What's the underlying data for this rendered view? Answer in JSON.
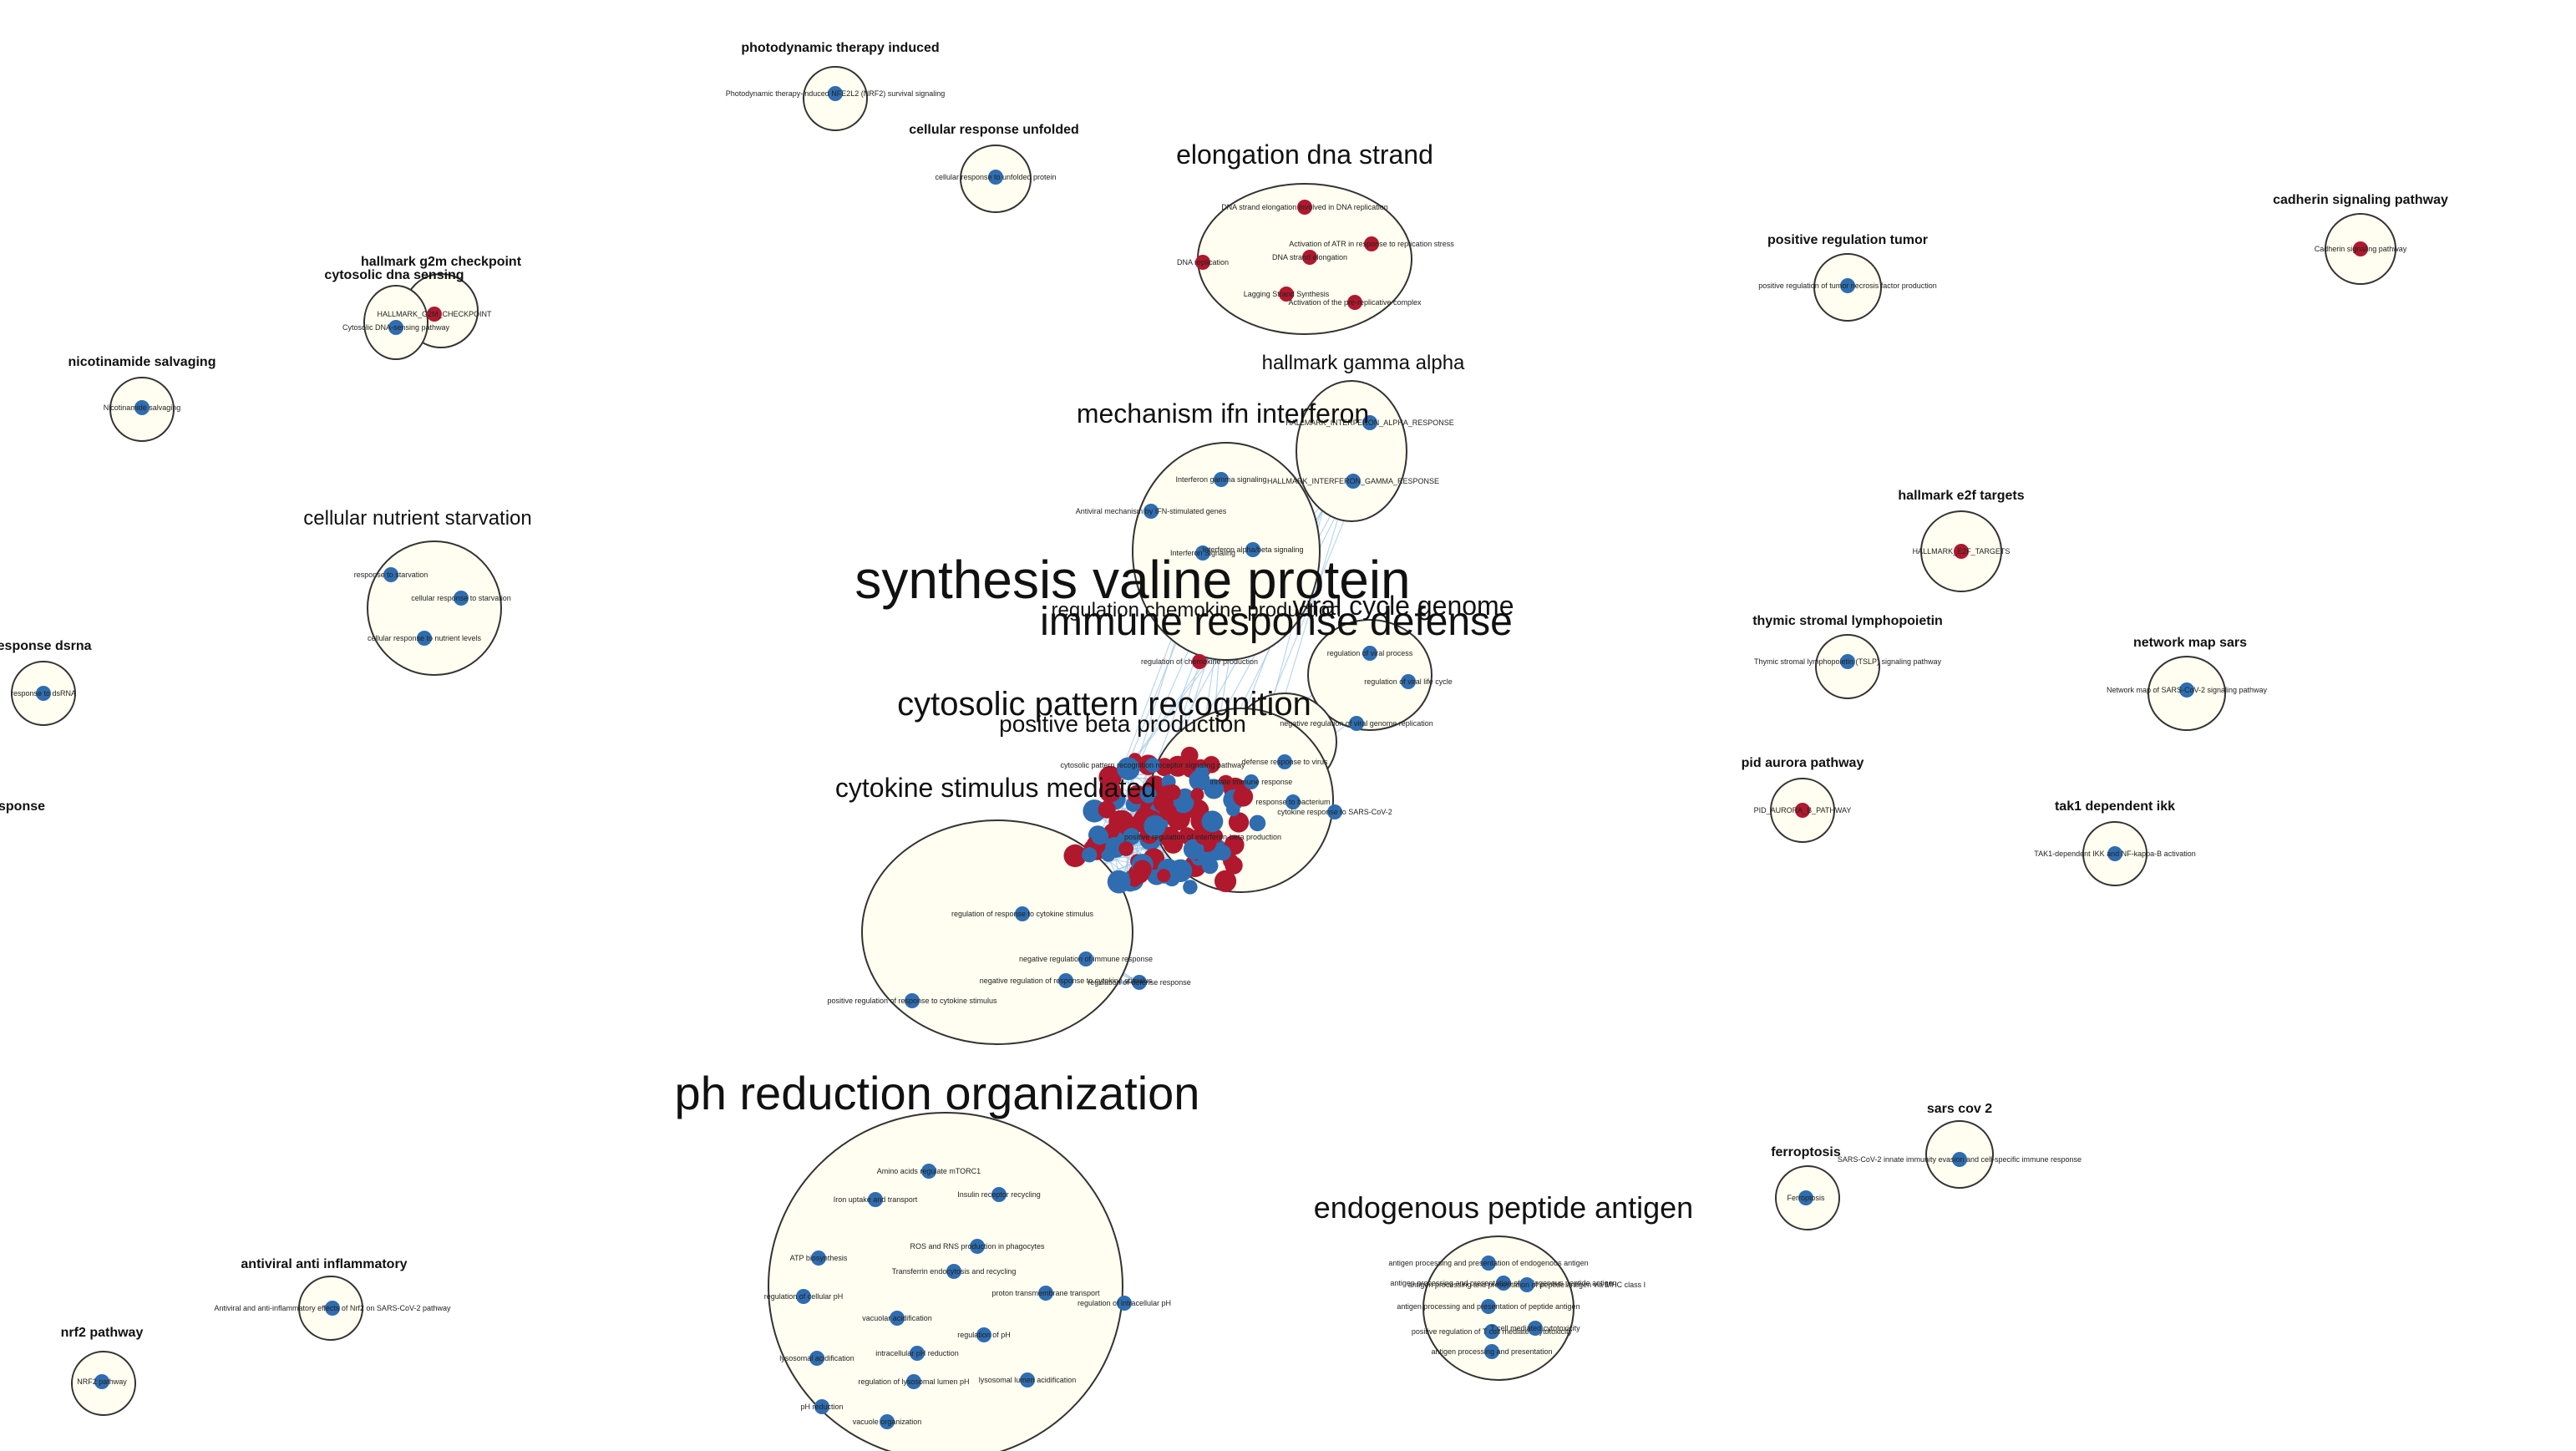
{
  "colors": {
    "background": "#ffffff",
    "cluster_fill": "#fffef0",
    "cluster_stroke": "#333333",
    "node_blue": "#2f6db0",
    "node_red": "#b0182e",
    "edge": "#9ec6e6"
  },
  "clusters": [
    {
      "title": "photodynamic therapy induced",
      "nodes": [
        {
          "label": "Photodynamic therapy-induced NFE2L2 (NRF2) survival signaling",
          "color": "blue"
        }
      ]
    },
    {
      "title": "cellular response unfolded",
      "nodes": [
        {
          "label": "cellular response to unfolded protein",
          "color": "blue"
        }
      ]
    },
    {
      "title": "elongation dna strand",
      "nodes": [
        {
          "label": "DNA strand elongation involved in DNA replication",
          "color": "red"
        },
        {
          "label": "Activation of ATR in response to replication stress",
          "color": "red"
        },
        {
          "label": "DNA replication",
          "color": "red"
        },
        {
          "label": "DNA strand elongation",
          "color": "red"
        },
        {
          "label": "Lagging Strand Synthesis",
          "color": "red"
        },
        {
          "label": "Activation of the pre-replicative complex",
          "color": "red"
        }
      ]
    },
    {
      "title": "hallmark g2m checkpoint",
      "nodes": [
        {
          "label": "HALLMARK_G2M_CHECKPOINT",
          "color": "red"
        }
      ]
    },
    {
      "title": "cytosolic dna sensing",
      "nodes": [
        {
          "label": "Cytosolic DNA-sensing pathway",
          "color": "blue"
        }
      ]
    },
    {
      "title": "nicotinamide salvaging",
      "nodes": [
        {
          "label": "Nicotinamide salvaging",
          "color": "blue"
        }
      ]
    },
    {
      "title": "hallmark gamma alpha",
      "nodes": [
        {
          "label": "HALLMARK_INTERFERON_ALPHA_RESPONSE",
          "color": "blue"
        },
        {
          "label": "HALLMARK_INTERFERON_GAMMA_RESPONSE",
          "color": "blue"
        }
      ]
    },
    {
      "title": "mechanism ifn interferon",
      "nodes": [
        {
          "label": "Interferon gamma signaling",
          "color": "blue"
        },
        {
          "label": "Antiviral mechanism by IFN-stimulated genes",
          "color": "blue"
        },
        {
          "label": "Interferon Signaling",
          "color": "blue"
        },
        {
          "label": "Interferon alpha/beta signaling",
          "color": "blue"
        }
      ]
    },
    {
      "title": "cellular nutrient starvation",
      "nodes": [
        {
          "label": "response to starvation",
          "color": "blue"
        },
        {
          "label": "cellular response to starvation",
          "color": "blue"
        },
        {
          "label": "cellular response to nutrient levels",
          "color": "blue"
        }
      ]
    },
    {
      "title": "response dsrna",
      "nodes": [
        {
          "label": "response to dsRNA",
          "color": "blue"
        }
      ]
    },
    {
      "title": "sponse",
      "nodes": []
    },
    {
      "title": "synthesis valine protein",
      "nodes": []
    },
    {
      "title": "viral cycle genome",
      "nodes": [
        {
          "label": "regulation of viral process",
          "color": "blue"
        },
        {
          "label": "regulation of viral life cycle",
          "color": "blue"
        },
        {
          "label": "negative regulation of viral genome replication",
          "color": "blue"
        }
      ]
    },
    {
      "title": "regulation chemokine production",
      "nodes": [
        {
          "label": "regulation of chemokine production",
          "color": "red"
        }
      ]
    },
    {
      "title": "immune response defense",
      "nodes": [
        {
          "label": "defense response to virus",
          "color": "blue"
        },
        {
          "label": "innate immune response",
          "color": "blue"
        },
        {
          "label": "response to bacterium",
          "color": "blue"
        },
        {
          "label": "cytokine response to SARS-CoV-2",
          "color": "blue"
        }
      ]
    },
    {
      "title": "cytosolic pattern recognition",
      "nodes": [
        {
          "label": "cytosolic pattern recognition receptor signaling pathway",
          "color": "blue"
        }
      ]
    },
    {
      "title": "positive beta production",
      "nodes": [
        {
          "label": "positive regulation of interferon-beta production",
          "color": "red"
        }
      ]
    },
    {
      "title": "cytokine stimulus mediated",
      "nodes": [
        {
          "label": "regulation of response to cytokine stimulus",
          "color": "blue"
        },
        {
          "label": "negative regulation of immune response",
          "color": "blue"
        },
        {
          "label": "regulation of defense response",
          "color": "blue"
        },
        {
          "label": "negative regulation of response to cytokine stimulus",
          "color": "blue"
        },
        {
          "label": "positive regulation of response to cytokine stimulus",
          "color": "blue"
        }
      ]
    },
    {
      "title": "ph reduction organization",
      "nodes": [
        {
          "label": "Amino acids regulate mTORC1",
          "color": "blue"
        },
        {
          "label": "Iron uptake and transport",
          "color": "blue"
        },
        {
          "label": "Insulin receptor recycling",
          "color": "blue"
        },
        {
          "label": "ROS and RNS production in phagocytes",
          "color": "blue"
        },
        {
          "label": "ATP biosynthesis",
          "color": "blue"
        },
        {
          "label": "Transferrin endocytosis and recycling",
          "color": "blue"
        },
        {
          "label": "regulation of cellular pH",
          "color": "blue"
        },
        {
          "label": "proton transmembrane transport",
          "color": "blue"
        },
        {
          "label": "regulation of intracellular pH",
          "color": "blue"
        },
        {
          "label": "vacuolar acidification",
          "color": "blue"
        },
        {
          "label": "regulation of pH",
          "color": "blue"
        },
        {
          "label": "intracellular pH reduction",
          "color": "blue"
        },
        {
          "label": "lysosomal acidification",
          "color": "blue"
        },
        {
          "label": "lysosomal lumen acidification",
          "color": "blue"
        },
        {
          "label": "regulation of lysosomal lumen pH",
          "color": "blue"
        },
        {
          "label": "pH reduction",
          "color": "blue"
        },
        {
          "label": "vacuole organization",
          "color": "blue"
        }
      ]
    },
    {
      "title": "endogenous peptide antigen",
      "nodes": [
        {
          "label": "antigen processing and presentation of endogenous antigen",
          "color": "blue"
        },
        {
          "label": "antigen processing and presentation of endogenous peptide antigen",
          "color": "blue"
        },
        {
          "label": "antigen processing and presentation of peptide antigen via MHC class I",
          "color": "blue"
        },
        {
          "label": "antigen processing and presentation of peptide antigen",
          "color": "blue"
        },
        {
          "label": "positive regulation of T cell mediated cytotoxicity",
          "color": "blue"
        },
        {
          "label": "T cell mediated cytotoxicity",
          "color": "blue"
        },
        {
          "label": "antigen processing and presentation",
          "color": "blue"
        }
      ]
    },
    {
      "title": "antiviral anti inflammatory",
      "nodes": [
        {
          "label": "Antiviral and anti-inflammatory effects of Nrf2 on SARS-CoV-2 pathway",
          "color": "blue"
        }
      ]
    },
    {
      "title": "nrf2 pathway",
      "nodes": [
        {
          "label": "NRF2 pathway",
          "color": "blue"
        }
      ]
    },
    {
      "title": "positive regulation tumor",
      "nodes": [
        {
          "label": "positive regulation of tumor necrosis factor production",
          "color": "blue"
        }
      ]
    },
    {
      "title": "cadherin signaling pathway",
      "nodes": [
        {
          "label": "Cadherin signaling pathway",
          "color": "red"
        }
      ]
    },
    {
      "title": "hallmark e2f targets",
      "nodes": [
        {
          "label": "HALLMARK_E2F_TARGETS",
          "color": "red"
        }
      ]
    },
    {
      "title": "thymic stromal lymphopoietin",
      "nodes": [
        {
          "label": "Thymic stromal lymphopoietin (TSLP) signaling pathway",
          "color": "blue"
        }
      ]
    },
    {
      "title": "network map sars",
      "nodes": [
        {
          "label": "Network map of SARS-CoV-2 signaling pathway",
          "color": "blue"
        }
      ]
    },
    {
      "title": "pid aurora pathway",
      "nodes": [
        {
          "label": "PID_AURORA_B_PATHWAY",
          "color": "red"
        }
      ]
    },
    {
      "title": "tak1 dependent ikk",
      "nodes": [
        {
          "label": "TAK1-dependent IKK and NF-kappa-B activation",
          "color": "blue"
        }
      ]
    },
    {
      "title": "sars cov 2",
      "nodes": [
        {
          "label": "SARS-CoV-2 innate immunity evasion and cell-specific immune response",
          "color": "blue"
        }
      ]
    },
    {
      "title": "ferroptosis",
      "nodes": [
        {
          "label": "Ferroptosis",
          "color": "blue"
        }
      ]
    }
  ]
}
